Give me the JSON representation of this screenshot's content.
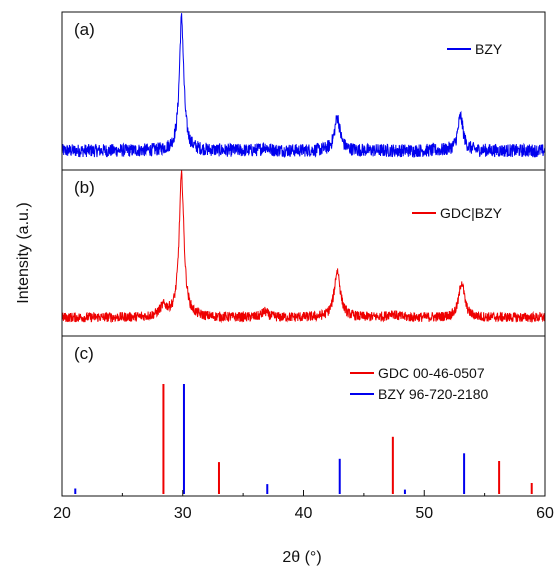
{
  "chart_data": {
    "type": "line",
    "xlabel": "2θ (°)",
    "ylabel": "Intensity (a.u.)",
    "xlim": [
      20,
      60
    ],
    "xticks": [
      "20",
      "30",
      "40",
      "50",
      "60"
    ],
    "grid": false,
    "panels": [
      {
        "label": "(a)",
        "type": "line",
        "legend": [
          {
            "name": "BZY",
            "color": "#0000ee"
          }
        ],
        "legend_position": "top-right",
        "series": [
          {
            "name": "BZY",
            "color": "#0000ee",
            "noise": 0.05,
            "baseline": 0.07,
            "peaks": [
              {
                "x": 29.9,
                "height": 1.0,
                "width": 0.22
              },
              {
                "x": 42.8,
                "height": 0.25,
                "width": 0.28
              },
              {
                "x": 53.0,
                "height": 0.26,
                "width": 0.26
              },
              {
                "x": 36.8,
                "height": 0.03,
                "width": 0.3
              }
            ]
          }
        ]
      },
      {
        "label": "(b)",
        "type": "line",
        "legend": [
          {
            "name": "GDC|BZY",
            "color": "#ee0000"
          }
        ],
        "legend_position": "top-right",
        "series": [
          {
            "name": "GDC|BZY",
            "color": "#ee0000",
            "noise": 0.035,
            "baseline": 0.06,
            "peaks": [
              {
                "x": 29.9,
                "height": 1.0,
                "width": 0.24
              },
              {
                "x": 42.8,
                "height": 0.33,
                "width": 0.3
              },
              {
                "x": 53.1,
                "height": 0.25,
                "width": 0.28
              },
              {
                "x": 28.4,
                "height": 0.07,
                "width": 0.4
              },
              {
                "x": 36.8,
                "height": 0.04,
                "width": 0.3
              },
              {
                "x": 47.3,
                "height": 0.03,
                "width": 0.35
              }
            ]
          }
        ]
      },
      {
        "label": "(c)",
        "type": "bar",
        "legend": [
          {
            "name": "GDC 00-46-0507",
            "color": "#ee0000"
          },
          {
            "name": "BZY 96-720-2180",
            "color": "#0000ee"
          }
        ],
        "legend_position": "top-right",
        "series": [
          {
            "name": "GDC 00-46-0507",
            "color": "#ee0000",
            "x": [
              28.4,
              33.0,
              47.4,
              56.2,
              58.9
            ],
            "values": [
              100,
              29,
              52,
              30,
              10
            ]
          },
          {
            "name": "BZY 96-720-2180",
            "color": "#0000ee",
            "x": [
              21.1,
              30.1,
              37.0,
              43.0,
              48.4,
              53.3,
              58.9
            ],
            "values": [
              5,
              100,
              9,
              32,
              4,
              37,
              0
            ]
          }
        ]
      }
    ]
  }
}
